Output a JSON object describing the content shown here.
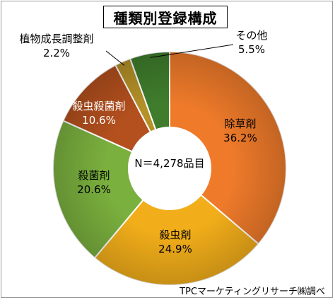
{
  "chart_data": {
    "type": "donut",
    "title": "種類別登録構成",
    "center_label": "N＝4,278品目",
    "source": "TPCマーケティングリサーチ㈱調べ",
    "unit": "%",
    "slices": [
      {
        "label": "除草剤",
        "value": 36.2,
        "value_text": "36.2%",
        "color": "#ee7a2a"
      },
      {
        "label": "殺虫剤",
        "value": 24.9,
        "value_text": "24.9%",
        "color": "#f2ae1a"
      },
      {
        "label": "殺菌剤",
        "value": 20.6,
        "value_text": "20.6%",
        "color": "#7ab03e"
      },
      {
        "label": "殺虫殺菌剤",
        "value": 10.6,
        "value_text": "10.6%",
        "color": "#b4501e"
      },
      {
        "label": "植物成長調整剤",
        "value": 2.2,
        "value_text": "2.2%",
        "color": "#b59128"
      },
      {
        "label": "その他",
        "value": 5.5,
        "value_text": "5.5%",
        "color": "#3f7d2c"
      }
    ]
  }
}
